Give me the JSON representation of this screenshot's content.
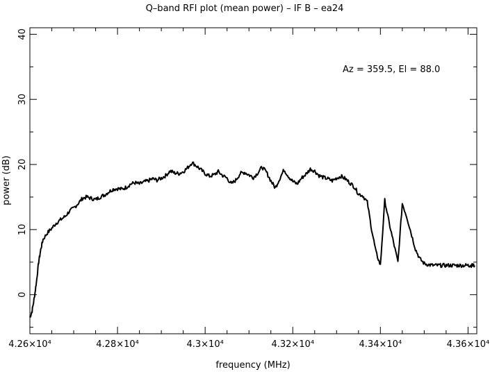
{
  "chart_data": {
    "type": "line",
    "title": "Q–band RFI plot (mean power) – IF B – ea24",
    "xlabel": "frequency (MHz)",
    "ylabel": "power (dB)",
    "annotation": "Az = 359.5, El = 88.0",
    "xlim": [
      42600,
      43620
    ],
    "ylim": [
      -6,
      41
    ],
    "grid": false,
    "x_ticks": [
      {
        "value": 42600,
        "label": "4.26×10⁴"
      },
      {
        "value": 42800,
        "label": "4.28×10⁴"
      },
      {
        "value": 43000,
        "label": "4.3×10⁴"
      },
      {
        "value": 43200,
        "label": "4.32×10⁴"
      },
      {
        "value": 43400,
        "label": "4.34×10⁴"
      },
      {
        "value": 43600,
        "label": "4.36×10⁴"
      }
    ],
    "y_ticks": [
      {
        "value": 0,
        "label": "0"
      },
      {
        "value": 10,
        "label": "10"
      },
      {
        "value": 20,
        "label": "20"
      },
      {
        "value": 30,
        "label": "30"
      },
      {
        "value": 40,
        "label": "40"
      }
    ],
    "series": [
      {
        "color": "#000000",
        "x": [
          42600,
          42605,
          42610,
          42615,
          42620,
          42625,
          42630,
          42640,
          42650,
          42660,
          42670,
          42680,
          42690,
          42700,
          42710,
          42720,
          42730,
          42740,
          42750,
          42760,
          42770,
          42780,
          42790,
          42800,
          42810,
          42820,
          42830,
          42840,
          42850,
          42860,
          42870,
          42880,
          42890,
          42900,
          42910,
          42920,
          42930,
          42940,
          42950,
          42960,
          42970,
          42980,
          42990,
          43000,
          43010,
          43020,
          43030,
          43040,
          43050,
          43060,
          43070,
          43080,
          43090,
          43100,
          43110,
          43120,
          43130,
          43140,
          43150,
          43160,
          43170,
          43180,
          43190,
          43200,
          43210,
          43220,
          43230,
          43240,
          43250,
          43260,
          43270,
          43280,
          43290,
          43300,
          43310,
          43320,
          43330,
          43340,
          43350,
          43360,
          43370,
          43380,
          43390,
          43400,
          43410,
          43420,
          43430,
          43440,
          43450,
          43460,
          43470,
          43480,
          43490,
          43500,
          43510,
          43520,
          43530,
          43540,
          43550,
          43560,
          43570,
          43580,
          43590,
          43600,
          43605,
          43610,
          43615
        ],
        "y": [
          -3.5,
          -2.5,
          -0.5,
          2.0,
          5.0,
          7.0,
          8.5,
          9.5,
          10.2,
          11.0,
          11.5,
          12.0,
          12.8,
          13.3,
          14.0,
          14.8,
          15.0,
          14.8,
          14.6,
          15.0,
          15.3,
          15.8,
          16.2,
          16.3,
          16.2,
          16.5,
          17.0,
          17.2,
          17.0,
          17.3,
          17.5,
          17.8,
          17.6,
          17.9,
          18.3,
          19.0,
          18.7,
          18.6,
          18.9,
          19.5,
          20.3,
          19.8,
          19.2,
          18.6,
          18.2,
          18.4,
          18.9,
          18.3,
          17.9,
          17.0,
          17.6,
          18.6,
          18.8,
          18.4,
          18.0,
          18.7,
          19.6,
          18.8,
          17.5,
          16.4,
          17.8,
          19.2,
          18.2,
          17.4,
          17.0,
          17.9,
          18.5,
          19.3,
          19.0,
          18.3,
          18.0,
          17.8,
          17.5,
          17.9,
          18.2,
          17.8,
          17.2,
          16.6,
          15.5,
          15.2,
          14.2,
          10.0,
          6.5,
          4.5,
          14.5,
          11.0,
          8.0,
          5.0,
          14.0,
          12.0,
          9.5,
          7.0,
          5.5,
          4.8,
          4.6,
          4.5,
          4.5,
          4.5,
          4.5,
          4.5,
          4.5,
          4.5,
          4.5,
          4.5,
          4.5,
          4.5,
          4.5
        ]
      }
    ]
  }
}
